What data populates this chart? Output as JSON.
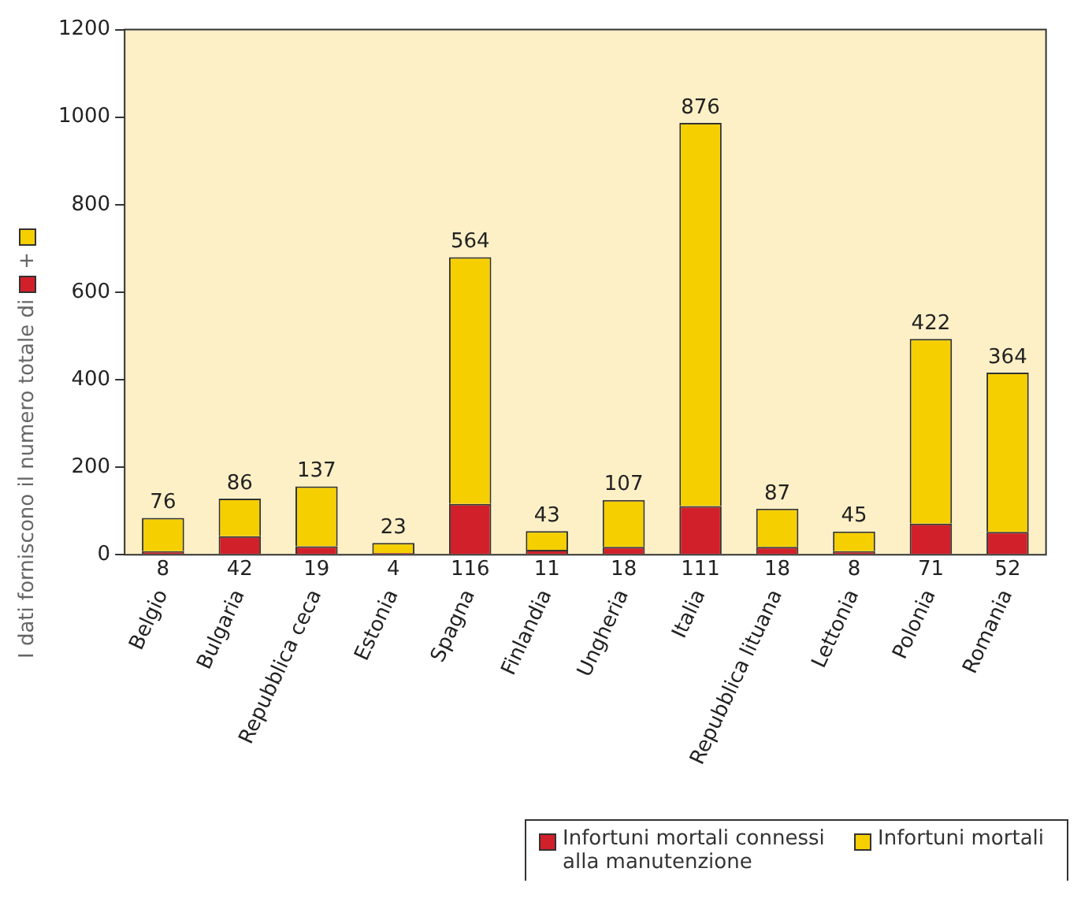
{
  "chart_data": {
    "type": "bar",
    "ylabel": "I dati forniscono il numero totale di",
    "annotations": [
      "+"
    ],
    "categories": [
      "Belgio",
      "Bulgaria",
      "Repubblica ceca",
      "Estonia",
      "Spagna",
      "Finlandia",
      "Ungheria",
      "Italia",
      "Repubblica lituana",
      "Lettonia",
      "Polonia",
      "Romania"
    ],
    "series": [
      {
        "name": "Infortuni mortali connessi alla manutenzione",
        "color": "#d2202a",
        "values": [
          8,
          42,
          19,
          4,
          116,
          11,
          18,
          111,
          18,
          8,
          71,
          52
        ]
      },
      {
        "name": "Infortuni mortali",
        "color": "#f5cf00",
        "values": [
          76,
          86,
          137,
          23,
          564,
          43,
          107,
          876,
          87,
          45,
          422,
          364
        ]
      }
    ],
    "stacked": true,
    "data_labels": true,
    "ylim": [
      0,
      1200
    ],
    "yticks": [
      0,
      200,
      400,
      600,
      800,
      1000,
      1200
    ],
    "grid": false,
    "legend": "bottom right"
  }
}
